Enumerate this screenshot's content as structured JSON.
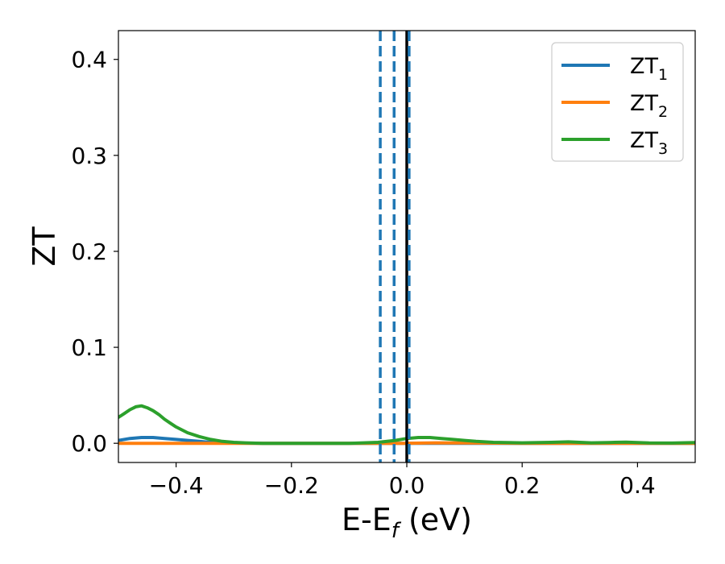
{
  "chart_data": {
    "type": "line",
    "title": "",
    "xlabel": {
      "base": "E-E",
      "sub": "f",
      "tail": " (eV)"
    },
    "ylabel": "ZT",
    "xlim": [
      -0.5,
      0.5
    ],
    "ylim": [
      -0.02,
      0.43
    ],
    "xticks": [
      {
        "value": -0.4,
        "label": "−0.4"
      },
      {
        "value": -0.2,
        "label": "−0.2"
      },
      {
        "value": 0.0,
        "label": "0.0"
      },
      {
        "value": 0.2,
        "label": "0.2"
      },
      {
        "value": 0.4,
        "label": "0.4"
      }
    ],
    "yticks": [
      {
        "value": 0.0,
        "label": "0.0"
      },
      {
        "value": 0.1,
        "label": "0.1"
      },
      {
        "value": 0.2,
        "label": "0.2"
      },
      {
        "value": 0.3,
        "label": "0.3"
      },
      {
        "value": 0.4,
        "label": "0.4"
      }
    ],
    "grid": false,
    "legend_position": "top-right",
    "vertical_lines": [
      {
        "x": -0.046,
        "style": "dashed",
        "color": "#1f77b4"
      },
      {
        "x": -0.022,
        "style": "dashed",
        "color": "#1f77b4"
      },
      {
        "x": 0.0,
        "style": "solid",
        "color": "#000000"
      },
      {
        "x": 0.004,
        "style": "dashed",
        "color": "#1f77b4"
      }
    ],
    "series": [
      {
        "name": "ZT",
        "sub": "1",
        "color": "#1f77b4",
        "x": [
          -0.5,
          -0.48,
          -0.46,
          -0.44,
          -0.42,
          -0.4,
          -0.38,
          -0.36,
          -0.34,
          -0.32,
          -0.3,
          -0.25,
          -0.2,
          -0.1,
          0.0,
          0.1,
          0.2,
          0.3,
          0.4,
          0.5
        ],
        "y": [
          0.003,
          0.005,
          0.006,
          0.006,
          0.005,
          0.004,
          0.003,
          0.002,
          0.001,
          0.0005,
          0.0002,
          0.0,
          0.0,
          0.0,
          0.0,
          0.0,
          0.0,
          0.0,
          0.0,
          0.0
        ]
      },
      {
        "name": "ZT",
        "sub": "2",
        "color": "#ff7f0e",
        "x": [
          -0.5,
          -0.4,
          -0.3,
          -0.2,
          -0.1,
          -0.05,
          0.0,
          0.05,
          0.1,
          0.2,
          0.3,
          0.4,
          0.5
        ],
        "y": [
          0.0,
          0.0,
          0.0,
          0.0,
          0.0,
          0.0,
          0.0,
          0.0005,
          0.0003,
          0.0,
          0.0,
          0.0,
          0.0
        ]
      },
      {
        "name": "ZT",
        "sub": "3",
        "color": "#2ca02c",
        "x": [
          -0.5,
          -0.49,
          -0.48,
          -0.47,
          -0.46,
          -0.45,
          -0.44,
          -0.43,
          -0.42,
          -0.41,
          -0.4,
          -0.38,
          -0.36,
          -0.34,
          -0.32,
          -0.3,
          -0.28,
          -0.25,
          -0.2,
          -0.15,
          -0.1,
          -0.05,
          -0.02,
          0.0,
          0.02,
          0.04,
          0.06,
          0.08,
          0.1,
          0.12,
          0.15,
          0.2,
          0.25,
          0.28,
          0.32,
          0.35,
          0.38,
          0.42,
          0.46,
          0.5
        ],
        "y": [
          0.027,
          0.031,
          0.035,
          0.038,
          0.039,
          0.037,
          0.034,
          0.03,
          0.025,
          0.021,
          0.017,
          0.011,
          0.007,
          0.004,
          0.002,
          0.001,
          0.0005,
          0.0,
          0.0,
          0.0,
          0.0,
          0.001,
          0.003,
          0.005,
          0.006,
          0.006,
          0.005,
          0.004,
          0.003,
          0.002,
          0.001,
          0.0005,
          0.001,
          0.0015,
          0.0005,
          0.0008,
          0.0012,
          0.0003,
          0.0002,
          0.0008
        ]
      }
    ]
  }
}
